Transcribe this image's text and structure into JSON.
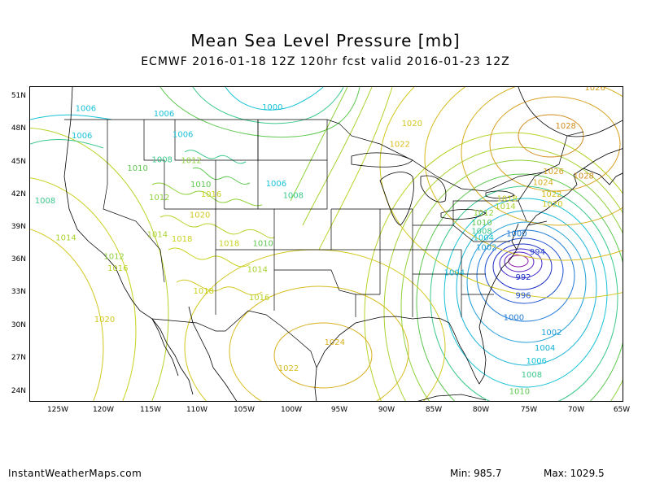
{
  "header": {
    "title": "Mean Sea Level Pressure [mb]",
    "subtitle": "ECMWF 2016-01-18 12Z 120hr fcst valid 2016-01-23 12Z"
  },
  "axes": {
    "lat_labels": [
      "51N",
      "48N",
      "45N",
      "42N",
      "39N",
      "36N",
      "33N",
      "30N",
      "27N",
      "24N"
    ],
    "lon_labels": [
      "125W",
      "120W",
      "115W",
      "110W",
      "105W",
      "100W",
      "95W",
      "90W",
      "85W",
      "80W",
      "75W",
      "70W",
      "65W"
    ]
  },
  "contour_labels": [
    {
      "text": "1006",
      "lon": -122.1,
      "lat": 49.8,
      "color": "#19c3d6"
    },
    {
      "text": "1006",
      "lon": -113.8,
      "lat": 49.3,
      "color": "#19c3d6"
    },
    {
      "text": "1000",
      "lon": -102.3,
      "lat": 49.9,
      "color": "#19c3d6"
    },
    {
      "text": "1006",
      "lon": -122.5,
      "lat": 47.3,
      "color": "#19c3d6"
    },
    {
      "text": "1006",
      "lon": -111.8,
      "lat": 47.4,
      "color": "#19c3d6"
    },
    {
      "text": "1008",
      "lon": -114.0,
      "lat": 45.1,
      "color": "#3cc88c"
    },
    {
      "text": "1012",
      "lon": -110.9,
      "lat": 45.0,
      "color": "#8fd23c"
    },
    {
      "text": "1010",
      "lon": -116.6,
      "lat": 44.3,
      "color": "#5ec850"
    },
    {
      "text": "1010",
      "lon": -109.9,
      "lat": 42.8,
      "color": "#5ec850"
    },
    {
      "text": "1016",
      "lon": -108.8,
      "lat": 41.9,
      "color": "#c8d21e"
    },
    {
      "text": "1012",
      "lon": -114.3,
      "lat": 41.6,
      "color": "#8fd23c"
    },
    {
      "text": "1006",
      "lon": -101.9,
      "lat": 42.9,
      "color": "#19c3d6"
    },
    {
      "text": "1008",
      "lon": -100.1,
      "lat": 41.8,
      "color": "#3cc88c"
    },
    {
      "text": "1008",
      "lon": -126.4,
      "lat": 41.3,
      "color": "#3cc88c"
    },
    {
      "text": "1020",
      "lon": -110.0,
      "lat": 40.0,
      "color": "#d2c81e"
    },
    {
      "text": "1014",
      "lon": -124.2,
      "lat": 37.9,
      "color": "#a8d232"
    },
    {
      "text": "1014",
      "lon": -114.5,
      "lat": 38.2,
      "color": "#a8d232"
    },
    {
      "text": "1018",
      "lon": -111.9,
      "lat": 37.8,
      "color": "#c8d21e"
    },
    {
      "text": "1018",
      "lon": -106.9,
      "lat": 37.4,
      "color": "#c8d21e"
    },
    {
      "text": "1010",
      "lon": -103.3,
      "lat": 37.4,
      "color": "#5ec850"
    },
    {
      "text": "1012",
      "lon": -119.1,
      "lat": 36.2,
      "color": "#8fd23c"
    },
    {
      "text": "1016",
      "lon": -118.7,
      "lat": 35.1,
      "color": "#b9d228"
    },
    {
      "text": "1014",
      "lon": -103.9,
      "lat": 35.0,
      "color": "#a8d232"
    },
    {
      "text": "1018",
      "lon": -109.6,
      "lat": 33.0,
      "color": "#c8d21e"
    },
    {
      "text": "1016",
      "lon": -103.7,
      "lat": 32.4,
      "color": "#b9d228"
    },
    {
      "text": "1020",
      "lon": -120.1,
      "lat": 30.4,
      "color": "#d2c81e"
    },
    {
      "text": "1024",
      "lon": -95.7,
      "lat": 28.3,
      "color": "#d7af1e"
    },
    {
      "text": "1022",
      "lon": -100.6,
      "lat": 25.9,
      "color": "#d7bc1e"
    },
    {
      "text": "1020",
      "lon": -87.5,
      "lat": 48.4,
      "color": "#d2c81e"
    },
    {
      "text": "1022",
      "lon": -88.8,
      "lat": 46.5,
      "color": "#d7bc1e"
    },
    {
      "text": "1026",
      "lon": -68.1,
      "lat": 51.7,
      "color": "#d7a01e"
    },
    {
      "text": "1028",
      "lon": -71.2,
      "lat": 48.2,
      "color": "#d28c1e"
    },
    {
      "text": "1026",
      "lon": -72.5,
      "lat": 44.0,
      "color": "#d7a01e"
    },
    {
      "text": "1028",
      "lon": -69.3,
      "lat": 43.6,
      "color": "#d28c1e"
    },
    {
      "text": "1024",
      "lon": -73.6,
      "lat": 43.0,
      "color": "#d7af1e"
    },
    {
      "text": "1022",
      "lon": -72.7,
      "lat": 41.9,
      "color": "#d7bc1e"
    },
    {
      "text": "1020",
      "lon": -72.6,
      "lat": 41.0,
      "color": "#d2c81e"
    },
    {
      "text": "1018",
      "lon": -77.4,
      "lat": 41.5,
      "color": "#c8d21e"
    },
    {
      "text": "1014",
      "lon": -77.6,
      "lat": 40.8,
      "color": "#a8d232"
    },
    {
      "text": "1012",
      "lon": -79.9,
      "lat": 40.2,
      "color": "#8fd23c"
    },
    {
      "text": "1010",
      "lon": -80.1,
      "lat": 39.3,
      "color": "#5ec850"
    },
    {
      "text": "1008",
      "lon": -80.1,
      "lat": 38.5,
      "color": "#3cc88c"
    },
    {
      "text": "1004",
      "lon": -79.9,
      "lat": 37.9,
      "color": "#19c3d6"
    },
    {
      "text": "1000",
      "lon": -76.4,
      "lat": 38.3,
      "color": "#1e7ad6"
    },
    {
      "text": "1002",
      "lon": -79.6,
      "lat": 37.0,
      "color": "#1e9ed6"
    },
    {
      "text": "994",
      "lon": -74.2,
      "lat": 36.6,
      "color": "#1e3ccd"
    },
    {
      "text": "1004",
      "lon": -83.0,
      "lat": 34.7,
      "color": "#19b4d6"
    },
    {
      "text": "992",
      "lon": -75.7,
      "lat": 34.3,
      "color": "#1e32c8"
    },
    {
      "text": "996",
      "lon": -75.7,
      "lat": 32.6,
      "color": "#1e50d2"
    },
    {
      "text": "1000",
      "lon": -76.7,
      "lat": 30.6,
      "color": "#1e7ad6"
    },
    {
      "text": "1002",
      "lon": -72.7,
      "lat": 29.2,
      "color": "#1e9ed6"
    },
    {
      "text": "1004",
      "lon": -73.4,
      "lat": 27.8,
      "color": "#19b4d6"
    },
    {
      "text": "1006",
      "lon": -74.3,
      "lat": 26.6,
      "color": "#19c3d6"
    },
    {
      "text": "1008",
      "lon": -74.8,
      "lat": 25.3,
      "color": "#3cc88c"
    },
    {
      "text": "1010",
      "lon": -76.1,
      "lat": 23.8,
      "color": "#5ec850"
    }
  ],
  "footer": {
    "source": "InstantWeatherMaps.com",
    "min_text": "Min:  985.7",
    "max_text": "Max: 1029.5"
  }
}
